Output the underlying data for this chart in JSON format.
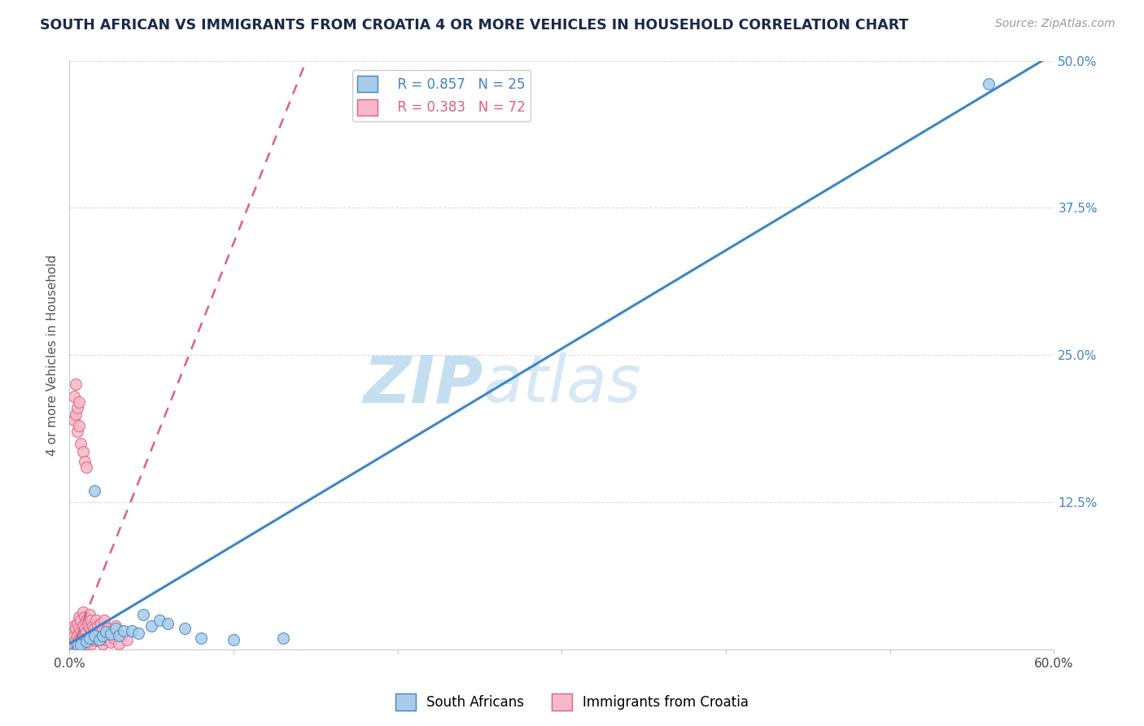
{
  "title": "SOUTH AFRICAN VS IMMIGRANTS FROM CROATIA 4 OR MORE VEHICLES IN HOUSEHOLD CORRELATION CHART",
  "source_text": "Source: ZipAtlas.com",
  "ylabel": "4 or more Vehicles in Household",
  "xlim": [
    0.0,
    0.6
  ],
  "ylim": [
    0.0,
    0.5
  ],
  "xticks": [
    0.0,
    0.1,
    0.2,
    0.3,
    0.4,
    0.5,
    0.6
  ],
  "xticklabels": [
    "0.0%",
    "",
    "",
    "",
    "",
    "",
    "60.0%"
  ],
  "yticks": [
    0.0,
    0.125,
    0.25,
    0.375,
    0.5
  ],
  "yticklabels_right": [
    "",
    "12.5%",
    "25.0%",
    "37.5%",
    "50.0%"
  ],
  "background_color": "#ffffff",
  "grid_color": "#dddddd",
  "watermark": "ZIPatlas",
  "watermark_color": "#cde8f8",
  "legend_R1": "R = 0.857",
  "legend_N1": "N = 25",
  "legend_R2": "R = 0.383",
  "legend_N2": "N = 72",
  "blue_color": "#a8cce8",
  "pink_color": "#f5b8c8",
  "blue_line_color": "#3d85c8",
  "pink_line_color": "#e06080",
  "title_color": "#1a2a4a",
  "source_color": "#999999",
  "blue_line_slope": 0.835,
  "blue_line_intercept": 0.005,
  "pink_line_slope": 3.5,
  "pink_line_intercept": -0.005,
  "scatter_blue": [
    [
      0.003,
      0.003
    ],
    [
      0.005,
      0.004
    ],
    [
      0.007,
      0.004
    ],
    [
      0.01,
      0.007
    ],
    [
      0.012,
      0.01
    ],
    [
      0.015,
      0.012
    ],
    [
      0.018,
      0.008
    ],
    [
      0.02,
      0.012
    ],
    [
      0.022,
      0.015
    ],
    [
      0.025,
      0.013
    ],
    [
      0.028,
      0.018
    ],
    [
      0.03,
      0.012
    ],
    [
      0.033,
      0.016
    ],
    [
      0.038,
      0.016
    ],
    [
      0.042,
      0.014
    ],
    [
      0.05,
      0.02
    ],
    [
      0.055,
      0.025
    ],
    [
      0.06,
      0.022
    ],
    [
      0.07,
      0.018
    ],
    [
      0.08,
      0.01
    ],
    [
      0.015,
      0.135
    ],
    [
      0.045,
      0.03
    ],
    [
      0.1,
      0.008
    ],
    [
      0.13,
      0.01
    ],
    [
      0.56,
      0.48
    ]
  ],
  "scatter_pink": [
    [
      0.001,
      0.001
    ],
    [
      0.002,
      0.003
    ],
    [
      0.002,
      0.01
    ],
    [
      0.003,
      0.005
    ],
    [
      0.003,
      0.012
    ],
    [
      0.003,
      0.02
    ],
    [
      0.004,
      0.003
    ],
    [
      0.004,
      0.008
    ],
    [
      0.004,
      0.018
    ],
    [
      0.005,
      0.005
    ],
    [
      0.005,
      0.012
    ],
    [
      0.005,
      0.022
    ],
    [
      0.006,
      0.008
    ],
    [
      0.006,
      0.018
    ],
    [
      0.006,
      0.028
    ],
    [
      0.007,
      0.005
    ],
    [
      0.007,
      0.015
    ],
    [
      0.007,
      0.025
    ],
    [
      0.008,
      0.01
    ],
    [
      0.008,
      0.02
    ],
    [
      0.008,
      0.032
    ],
    [
      0.009,
      0.008
    ],
    [
      0.009,
      0.018
    ],
    [
      0.009,
      0.028
    ],
    [
      0.01,
      0.005
    ],
    [
      0.01,
      0.015
    ],
    [
      0.01,
      0.025
    ],
    [
      0.011,
      0.01
    ],
    [
      0.011,
      0.02
    ],
    [
      0.012,
      0.008
    ],
    [
      0.012,
      0.018
    ],
    [
      0.012,
      0.03
    ],
    [
      0.013,
      0.005
    ],
    [
      0.013,
      0.015
    ],
    [
      0.013,
      0.025
    ],
    [
      0.014,
      0.01
    ],
    [
      0.014,
      0.02
    ],
    [
      0.015,
      0.008
    ],
    [
      0.015,
      0.018
    ],
    [
      0.016,
      0.012
    ],
    [
      0.016,
      0.025
    ],
    [
      0.017,
      0.008
    ],
    [
      0.017,
      0.02
    ],
    [
      0.018,
      0.015
    ],
    [
      0.019,
      0.01
    ],
    [
      0.019,
      0.022
    ],
    [
      0.02,
      0.005
    ],
    [
      0.02,
      0.018
    ],
    [
      0.021,
      0.012
    ],
    [
      0.021,
      0.025
    ],
    [
      0.022,
      0.008
    ],
    [
      0.023,
      0.018
    ],
    [
      0.024,
      0.012
    ],
    [
      0.025,
      0.006
    ],
    [
      0.026,
      0.015
    ],
    [
      0.027,
      0.01
    ],
    [
      0.028,
      0.02
    ],
    [
      0.03,
      0.005
    ],
    [
      0.032,
      0.012
    ],
    [
      0.035,
      0.008
    ],
    [
      0.003,
      0.195
    ],
    [
      0.003,
      0.215
    ],
    [
      0.004,
      0.2
    ],
    [
      0.004,
      0.225
    ],
    [
      0.005,
      0.185
    ],
    [
      0.005,
      0.205
    ],
    [
      0.006,
      0.19
    ],
    [
      0.006,
      0.21
    ],
    [
      0.007,
      0.175
    ],
    [
      0.008,
      0.168
    ],
    [
      0.009,
      0.16
    ],
    [
      0.01,
      0.155
    ]
  ],
  "figsize": [
    14.06,
    8.92
  ],
  "dpi": 100
}
